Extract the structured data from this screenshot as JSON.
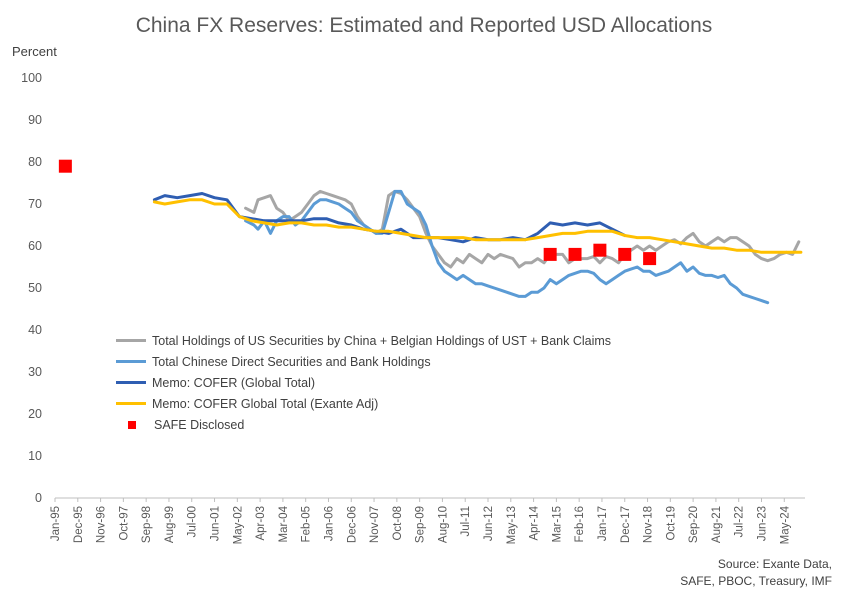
{
  "chart_data": {
    "type": "line",
    "title": "China FX Reserves:  Estimated and Reported USD Allocations",
    "ylabel": "Percent",
    "xlabel": "",
    "ylim": [
      0,
      100
    ],
    "yticks": [
      0,
      10,
      20,
      30,
      40,
      50,
      60,
      70,
      80,
      90,
      100
    ],
    "xlim": [
      "1995-01",
      "2025-03"
    ],
    "xticks": [
      "Jan-95",
      "Dec-95",
      "Nov-96",
      "Oct-97",
      "Sep-98",
      "Aug-99",
      "Jul-00",
      "Jun-01",
      "May-02",
      "Apr-03",
      "Mar-04",
      "Feb-05",
      "Jan-06",
      "Dec-06",
      "Nov-07",
      "Oct-08",
      "Sep-09",
      "Aug-10",
      "Jul-11",
      "Jun-12",
      "May-13",
      "Apr-14",
      "Mar-15",
      "Feb-16",
      "Jan-17",
      "Dec-17",
      "Nov-18",
      "Oct-19",
      "Sep-20",
      "Aug-21",
      "Jul-22",
      "Jun-23",
      "May-24"
    ],
    "grid": false,
    "legend_position": "lower-left",
    "series": [
      {
        "name": "Total Holdings of US Securities by China + Belgian Holdings of UST + Bank Claims",
        "color": "#a6a6a6",
        "points": [
          [
            "2002-09",
            69
          ],
          [
            "2003-01",
            68
          ],
          [
            "2003-03",
            71
          ],
          [
            "2003-06",
            71.5
          ],
          [
            "2003-09",
            72
          ],
          [
            "2003-12",
            69
          ],
          [
            "2004-03",
            68
          ],
          [
            "2004-06",
            66
          ],
          [
            "2004-09",
            67
          ],
          [
            "2004-12",
            68
          ],
          [
            "2005-03",
            70
          ],
          [
            "2005-06",
            72
          ],
          [
            "2005-09",
            73
          ],
          [
            "2005-12",
            72.5
          ],
          [
            "2006-03",
            72
          ],
          [
            "2006-06",
            71.5
          ],
          [
            "2006-09",
            71
          ],
          [
            "2006-12",
            70
          ],
          [
            "2007-03",
            67
          ],
          [
            "2007-06",
            65
          ],
          [
            "2007-09",
            64
          ],
          [
            "2007-12",
            63
          ],
          [
            "2008-03",
            64
          ],
          [
            "2008-06",
            72
          ],
          [
            "2008-09",
            73
          ],
          [
            "2008-12",
            72.5
          ],
          [
            "2009-03",
            71
          ],
          [
            "2009-06",
            69
          ],
          [
            "2009-09",
            67
          ],
          [
            "2009-12",
            63
          ],
          [
            "2010-03",
            60
          ],
          [
            "2010-06",
            58
          ],
          [
            "2010-09",
            56
          ],
          [
            "2010-12",
            55
          ],
          [
            "2011-03",
            57
          ],
          [
            "2011-06",
            56
          ],
          [
            "2011-09",
            58
          ],
          [
            "2011-12",
            57
          ],
          [
            "2012-03",
            56
          ],
          [
            "2012-06",
            58
          ],
          [
            "2012-09",
            57
          ],
          [
            "2012-12",
            58
          ],
          [
            "2013-06",
            57
          ],
          [
            "2013-09",
            55
          ],
          [
            "2013-12",
            56
          ],
          [
            "2014-03",
            56
          ],
          [
            "2014-06",
            57
          ],
          [
            "2014-09",
            56
          ],
          [
            "2014-12",
            58
          ],
          [
            "2015-06",
            58
          ],
          [
            "2015-09",
            56
          ],
          [
            "2015-12",
            57
          ],
          [
            "2016-03",
            57
          ],
          [
            "2016-06",
            57
          ],
          [
            "2016-09",
            57.5
          ],
          [
            "2016-12",
            56
          ],
          [
            "2017-03",
            57.5
          ],
          [
            "2017-06",
            57
          ],
          [
            "2017-09",
            56
          ],
          [
            "2017-12",
            58
          ],
          [
            "2018-03",
            59
          ],
          [
            "2018-06",
            60
          ],
          [
            "2018-09",
            59
          ],
          [
            "2018-12",
            60
          ],
          [
            "2019-03",
            59
          ],
          [
            "2019-06",
            60
          ],
          [
            "2019-09",
            61
          ],
          [
            "2019-12",
            61.5
          ],
          [
            "2020-03",
            60.5
          ],
          [
            "2020-06",
            62
          ],
          [
            "2020-09",
            63
          ],
          [
            "2020-12",
            61
          ],
          [
            "2021-03",
            60
          ],
          [
            "2021-06",
            61
          ],
          [
            "2021-09",
            62
          ],
          [
            "2021-12",
            61
          ],
          [
            "2022-03",
            62
          ],
          [
            "2022-06",
            62
          ],
          [
            "2022-09",
            61
          ],
          [
            "2022-12",
            60
          ],
          [
            "2023-03",
            58
          ],
          [
            "2023-06",
            57
          ],
          [
            "2023-09",
            56.5
          ],
          [
            "2023-12",
            57
          ],
          [
            "2024-03",
            58
          ],
          [
            "2024-06",
            58.5
          ],
          [
            "2024-09",
            58
          ],
          [
            "2024-12",
            61
          ]
        ]
      },
      {
        "name": "Total Chinese Direct Securities and Bank Holdings",
        "color": "#5b9bd5",
        "points": [
          [
            "2002-09",
            66
          ],
          [
            "2003-01",
            65
          ],
          [
            "2003-03",
            64
          ],
          [
            "2003-06",
            66
          ],
          [
            "2003-09",
            63
          ],
          [
            "2003-12",
            66
          ],
          [
            "2004-03",
            67
          ],
          [
            "2004-06",
            67
          ],
          [
            "2004-09",
            65
          ],
          [
            "2004-12",
            66
          ],
          [
            "2005-03",
            68
          ],
          [
            "2005-06",
            70
          ],
          [
            "2005-09",
            71
          ],
          [
            "2005-12",
            71
          ],
          [
            "2006-03",
            70.5
          ],
          [
            "2006-06",
            70
          ],
          [
            "2006-09",
            69
          ],
          [
            "2006-12",
            68
          ],
          [
            "2007-03",
            66
          ],
          [
            "2007-06",
            65
          ],
          [
            "2007-09",
            64
          ],
          [
            "2007-12",
            63
          ],
          [
            "2008-03",
            63
          ],
          [
            "2008-06",
            68
          ],
          [
            "2008-09",
            73
          ],
          [
            "2008-12",
            73
          ],
          [
            "2009-03",
            70
          ],
          [
            "2009-06",
            69
          ],
          [
            "2009-09",
            68
          ],
          [
            "2009-12",
            65
          ],
          [
            "2010-03",
            60
          ],
          [
            "2010-06",
            56
          ],
          [
            "2010-09",
            54
          ],
          [
            "2010-12",
            53
          ],
          [
            "2011-03",
            52
          ],
          [
            "2011-06",
            53
          ],
          [
            "2011-09",
            52
          ],
          [
            "2011-12",
            51
          ],
          [
            "2012-03",
            51
          ],
          [
            "2012-06",
            50.5
          ],
          [
            "2012-09",
            50
          ],
          [
            "2012-12",
            49.5
          ],
          [
            "2013-03",
            49
          ],
          [
            "2013-06",
            48.5
          ],
          [
            "2013-09",
            48
          ],
          [
            "2013-12",
            48
          ],
          [
            "2014-03",
            49
          ],
          [
            "2014-06",
            49
          ],
          [
            "2014-09",
            50
          ],
          [
            "2014-12",
            52
          ],
          [
            "2015-03",
            51
          ],
          [
            "2015-06",
            52
          ],
          [
            "2015-09",
            53
          ],
          [
            "2015-12",
            53.5
          ],
          [
            "2016-03",
            54
          ],
          [
            "2016-06",
            54
          ],
          [
            "2016-09",
            53.5
          ],
          [
            "2016-12",
            52
          ],
          [
            "2017-03",
            51
          ],
          [
            "2017-06",
            52
          ],
          [
            "2017-09",
            53
          ],
          [
            "2017-12",
            54
          ],
          [
            "2018-03",
            54.5
          ],
          [
            "2018-06",
            55
          ],
          [
            "2018-09",
            54
          ],
          [
            "2018-12",
            54
          ],
          [
            "2019-03",
            53
          ],
          [
            "2019-06",
            53.5
          ],
          [
            "2019-09",
            54
          ],
          [
            "2019-12",
            55
          ],
          [
            "2020-03",
            56
          ],
          [
            "2020-06",
            54
          ],
          [
            "2020-09",
            55
          ],
          [
            "2020-12",
            53.5
          ],
          [
            "2021-03",
            53
          ],
          [
            "2021-06",
            53
          ],
          [
            "2021-09",
            52.5
          ],
          [
            "2021-12",
            53
          ],
          [
            "2022-03",
            51
          ],
          [
            "2022-06",
            50
          ],
          [
            "2022-09",
            48.5
          ],
          [
            "2022-12",
            48
          ],
          [
            "2023-03",
            47.5
          ],
          [
            "2023-06",
            47
          ],
          [
            "2023-09",
            46.5
          ]
        ]
      },
      {
        "name": "Memo: COFER (Global Total)",
        "color": "#2f5eb2",
        "points": [
          [
            "1999-01",
            71
          ],
          [
            "1999-06",
            72
          ],
          [
            "1999-12",
            71.5
          ],
          [
            "2000-06",
            72
          ],
          [
            "2000-12",
            72.5
          ],
          [
            "2001-06",
            71.5
          ],
          [
            "2001-12",
            71
          ],
          [
            "2002-06",
            67
          ],
          [
            "2002-12",
            66.5
          ],
          [
            "2003-06",
            66
          ],
          [
            "2003-12",
            66
          ],
          [
            "2004-06",
            66
          ],
          [
            "2004-12",
            66
          ],
          [
            "2005-06",
            66.5
          ],
          [
            "2005-12",
            66.5
          ],
          [
            "2006-06",
            65.5
          ],
          [
            "2006-12",
            65
          ],
          [
            "2007-06",
            64
          ],
          [
            "2007-12",
            63.5
          ],
          [
            "2008-06",
            63
          ],
          [
            "2008-12",
            64
          ],
          [
            "2009-06",
            62
          ],
          [
            "2009-12",
            62
          ],
          [
            "2010-06",
            62
          ],
          [
            "2010-12",
            61.5
          ],
          [
            "2011-06",
            61
          ],
          [
            "2011-12",
            62
          ],
          [
            "2012-06",
            61.5
          ],
          [
            "2012-12",
            61.5
          ],
          [
            "2013-06",
            62
          ],
          [
            "2013-12",
            61.5
          ],
          [
            "2014-06",
            63
          ],
          [
            "2014-12",
            65.5
          ],
          [
            "2015-06",
            65
          ],
          [
            "2015-12",
            65.5
          ],
          [
            "2016-06",
            65
          ],
          [
            "2016-12",
            65.5
          ],
          [
            "2017-06",
            64
          ],
          [
            "2017-12",
            62.5
          ]
        ]
      },
      {
        "name": "Memo: COFER Global Total (Exante Adj)",
        "color": "#ffc000",
        "points": [
          [
            "1999-01",
            70.5
          ],
          [
            "1999-06",
            70
          ],
          [
            "1999-12",
            70.5
          ],
          [
            "2000-06",
            71
          ],
          [
            "2000-12",
            71
          ],
          [
            "2001-06",
            70
          ],
          [
            "2001-12",
            70
          ],
          [
            "2002-06",
            67
          ],
          [
            "2002-12",
            66
          ],
          [
            "2003-06",
            65.5
          ],
          [
            "2003-12",
            65
          ],
          [
            "2004-06",
            65.5
          ],
          [
            "2004-12",
            65.5
          ],
          [
            "2005-06",
            65
          ],
          [
            "2005-12",
            65
          ],
          [
            "2006-06",
            64.5
          ],
          [
            "2006-12",
            64.5
          ],
          [
            "2007-06",
            64
          ],
          [
            "2007-12",
            63.5
          ],
          [
            "2008-06",
            63.5
          ],
          [
            "2008-12",
            63
          ],
          [
            "2009-06",
            62.5
          ],
          [
            "2009-12",
            62
          ],
          [
            "2010-06",
            62
          ],
          [
            "2010-12",
            62
          ],
          [
            "2011-06",
            62
          ],
          [
            "2011-12",
            61.5
          ],
          [
            "2012-06",
            61.5
          ],
          [
            "2012-12",
            61.5
          ],
          [
            "2013-06",
            61.5
          ],
          [
            "2013-12",
            61.5
          ],
          [
            "2014-06",
            62
          ],
          [
            "2014-12",
            62.5
          ],
          [
            "2015-06",
            63
          ],
          [
            "2015-12",
            63
          ],
          [
            "2016-06",
            63.5
          ],
          [
            "2016-12",
            63.5
          ],
          [
            "2017-06",
            63.5
          ],
          [
            "2017-12",
            62.5
          ],
          [
            "2018-06",
            62
          ],
          [
            "2018-12",
            62
          ],
          [
            "2019-06",
            61.5
          ],
          [
            "2019-12",
            61
          ],
          [
            "2020-06",
            60.5
          ],
          [
            "2020-12",
            60
          ],
          [
            "2021-06",
            59.5
          ],
          [
            "2021-12",
            59.5
          ],
          [
            "2022-06",
            59
          ],
          [
            "2022-12",
            59
          ],
          [
            "2023-06",
            58.5
          ],
          [
            "2023-12",
            58.5
          ],
          [
            "2024-06",
            58.5
          ],
          [
            "2024-12",
            58.5
          ],
          [
            "2025-01",
            58.5
          ]
        ]
      }
    ],
    "scatter": {
      "name": "SAFE Disclosed",
      "color": "#ff0000",
      "points": [
        [
          "1995-06",
          79
        ],
        [
          "2014-12",
          58
        ],
        [
          "2015-12",
          58
        ],
        [
          "2016-12",
          59
        ],
        [
          "2017-12",
          58
        ],
        [
          "2018-12",
          57
        ]
      ]
    },
    "source": [
      "Source: Exante Data,",
      "SAFE, PBOC, Treasury, IMF"
    ],
    "axis_color": "#bfbfbf"
  }
}
